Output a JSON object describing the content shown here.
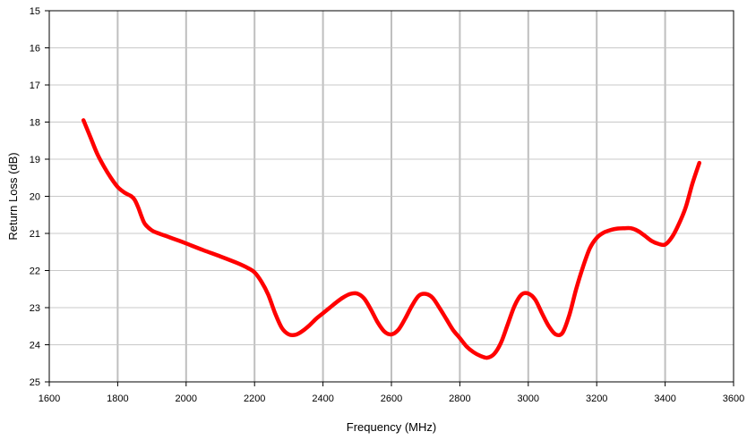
{
  "chart_data": {
    "type": "line",
    "title": "",
    "xlabel": "Frequency (MHz)",
    "ylabel": "Return Loss (dB)",
    "xlim": [
      1600,
      3600
    ],
    "ylim": [
      15,
      25
    ],
    "y_inverted": true,
    "xticks": [
      "1600",
      "1800",
      "2000",
      "2200",
      "2400",
      "2600",
      "2800",
      "3000",
      "3200",
      "3400",
      "3600"
    ],
    "yticks": [
      "15",
      "16",
      "17",
      "18",
      "19",
      "20",
      "21",
      "22",
      "23",
      "24",
      "25"
    ],
    "grid": {
      "vertical_major": true,
      "horizontal_major": true
    },
    "series": [
      {
        "color": "#ff0000",
        "x": [
          1700,
          1720,
          1740,
          1760,
          1780,
          1800,
          1820,
          1840,
          1850,
          1860,
          1870,
          1880,
          1900,
          1920,
          1950,
          1980,
          2000,
          2050,
          2100,
          2150,
          2180,
          2200,
          2220,
          2240,
          2260,
          2280,
          2300,
          2320,
          2340,
          2360,
          2380,
          2400,
          2420,
          2440,
          2460,
          2480,
          2500,
          2520,
          2540,
          2560,
          2580,
          2600,
          2620,
          2640,
          2660,
          2680,
          2700,
          2720,
          2740,
          2760,
          2780,
          2800,
          2820,
          2840,
          2860,
          2880,
          2900,
          2920,
          2940,
          2960,
          2980,
          3000,
          3020,
          3040,
          3060,
          3080,
          3100,
          3120,
          3140,
          3160,
          3180,
          3200,
          3220,
          3240,
          3260,
          3280,
          3300,
          3320,
          3340,
          3360,
          3380,
          3400,
          3420,
          3440,
          3460,
          3480,
          3500
        ],
        "y": [
          17.95,
          18.4,
          18.85,
          19.2,
          19.5,
          19.75,
          19.9,
          20.0,
          20.1,
          20.3,
          20.55,
          20.75,
          20.92,
          21.0,
          21.1,
          21.2,
          21.27,
          21.45,
          21.62,
          21.8,
          21.93,
          22.05,
          22.3,
          22.65,
          23.15,
          23.55,
          23.72,
          23.73,
          23.63,
          23.48,
          23.3,
          23.15,
          23.0,
          22.85,
          22.72,
          22.63,
          22.62,
          22.75,
          23.05,
          23.4,
          23.65,
          23.72,
          23.6,
          23.3,
          22.95,
          22.68,
          22.63,
          22.73,
          23.0,
          23.3,
          23.6,
          23.82,
          24.05,
          24.2,
          24.3,
          24.35,
          24.25,
          23.95,
          23.45,
          22.95,
          22.65,
          22.62,
          22.78,
          23.15,
          23.5,
          23.72,
          23.68,
          23.2,
          22.5,
          21.9,
          21.4,
          21.12,
          20.98,
          20.91,
          20.87,
          20.86,
          20.86,
          20.93,
          21.06,
          21.2,
          21.28,
          21.3,
          21.1,
          20.75,
          20.3,
          19.65,
          19.1
        ]
      }
    ]
  }
}
